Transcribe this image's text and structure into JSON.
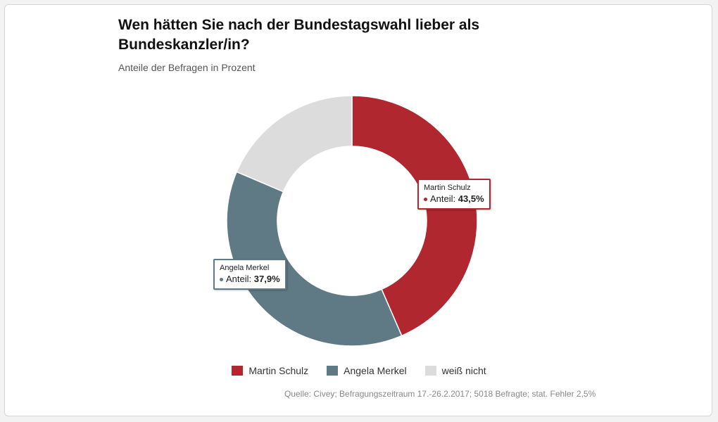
{
  "chart_data": {
    "type": "pie",
    "title": "Wen hätten Sie nach der Bundestagswahl lieber als Bundeskanzler/in?",
    "subtitle": "Anteile der Befragen in Prozent",
    "series": [
      {
        "name": "Martin Schulz",
        "value": 43.5,
        "color": "#b0272f"
      },
      {
        "name": "Angela Merkel",
        "value": 37.9,
        "color": "#5f7985"
      },
      {
        "name": "weiß nicht",
        "value": 18.6,
        "color": "#dcdcdc"
      }
    ],
    "tooltip_label": "Anteil:",
    "tooltips": [
      {
        "name": "Martin Schulz",
        "value_text": "43,5%",
        "color": "#b0272f"
      },
      {
        "name": "Angela Merkel",
        "value_text": "37,9%",
        "color": "#5f7985"
      }
    ],
    "legend": [
      "Martin Schulz",
      "Angela Merkel",
      "weiß nicht"
    ],
    "legend_position": "bottom",
    "source": "Quelle: Civey; Befragungszeitraum 17.-26.2.2017; 5018 Befragte; stat. Fehler 2,5%"
  }
}
